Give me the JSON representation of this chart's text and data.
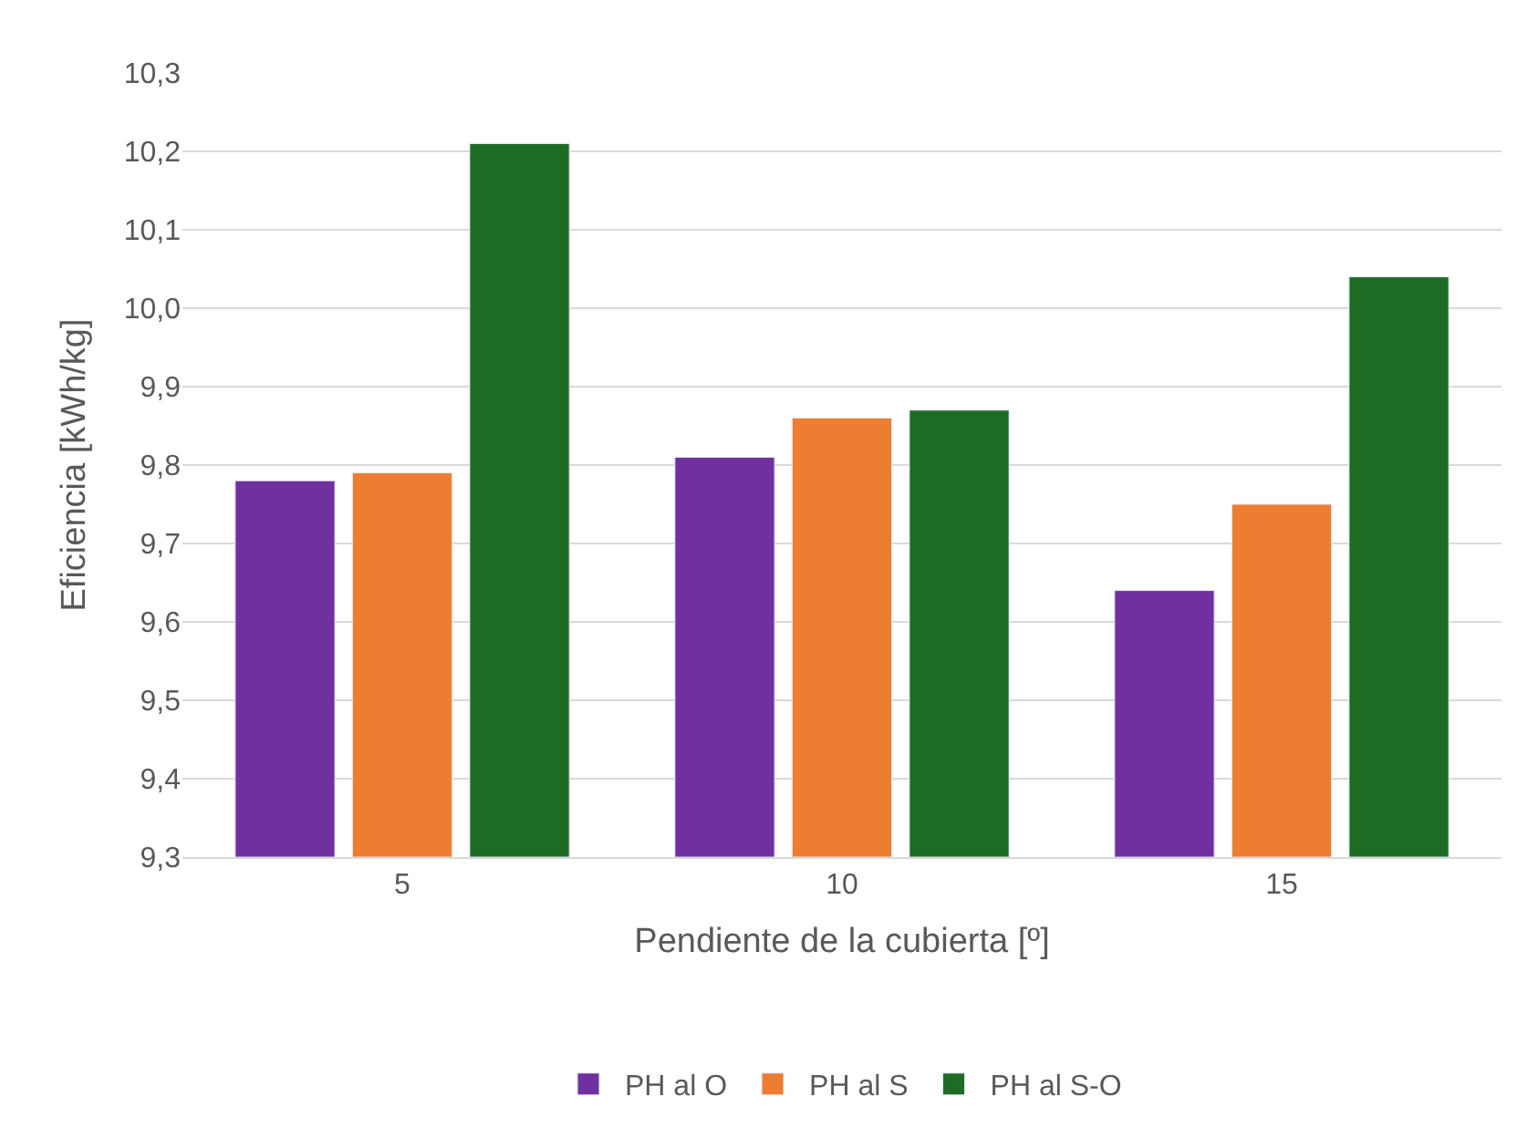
{
  "chart_data": {
    "type": "bar",
    "xlabel": "Pendiente de la cubierta [º]",
    "ylabel": "Eficiencia [kWh/kg]",
    "categories": [
      "5",
      "10",
      "15"
    ],
    "series": [
      {
        "name": "PH al O",
        "color": "#7030a0",
        "values": [
          9.78,
          9.81,
          9.64
        ]
      },
      {
        "name": "PH al S",
        "color": "#ed7d31",
        "values": [
          9.79,
          9.86,
          9.75
        ]
      },
      {
        "name": "PH al S-O",
        "color": "#1e6b24",
        "values": [
          10.21,
          9.87,
          10.04
        ]
      }
    ],
    "ylim": [
      9.3,
      10.3
    ],
    "yticks": [
      {
        "value": 9.3,
        "label": "9,3"
      },
      {
        "value": 9.4,
        "label": "9,4"
      },
      {
        "value": 9.5,
        "label": "9,5"
      },
      {
        "value": 9.6,
        "label": "9,6"
      },
      {
        "value": 9.7,
        "label": "9,7"
      },
      {
        "value": 9.8,
        "label": "9,8"
      },
      {
        "value": 9.9,
        "label": "9,9"
      },
      {
        "value": 10.0,
        "label": "10,0"
      },
      {
        "value": 10.1,
        "label": "10,1"
      },
      {
        "value": 10.2,
        "label": "10,2"
      },
      {
        "value": 10.3,
        "label": "10,3"
      }
    ],
    "grid": "y",
    "legend": "bottom"
  }
}
